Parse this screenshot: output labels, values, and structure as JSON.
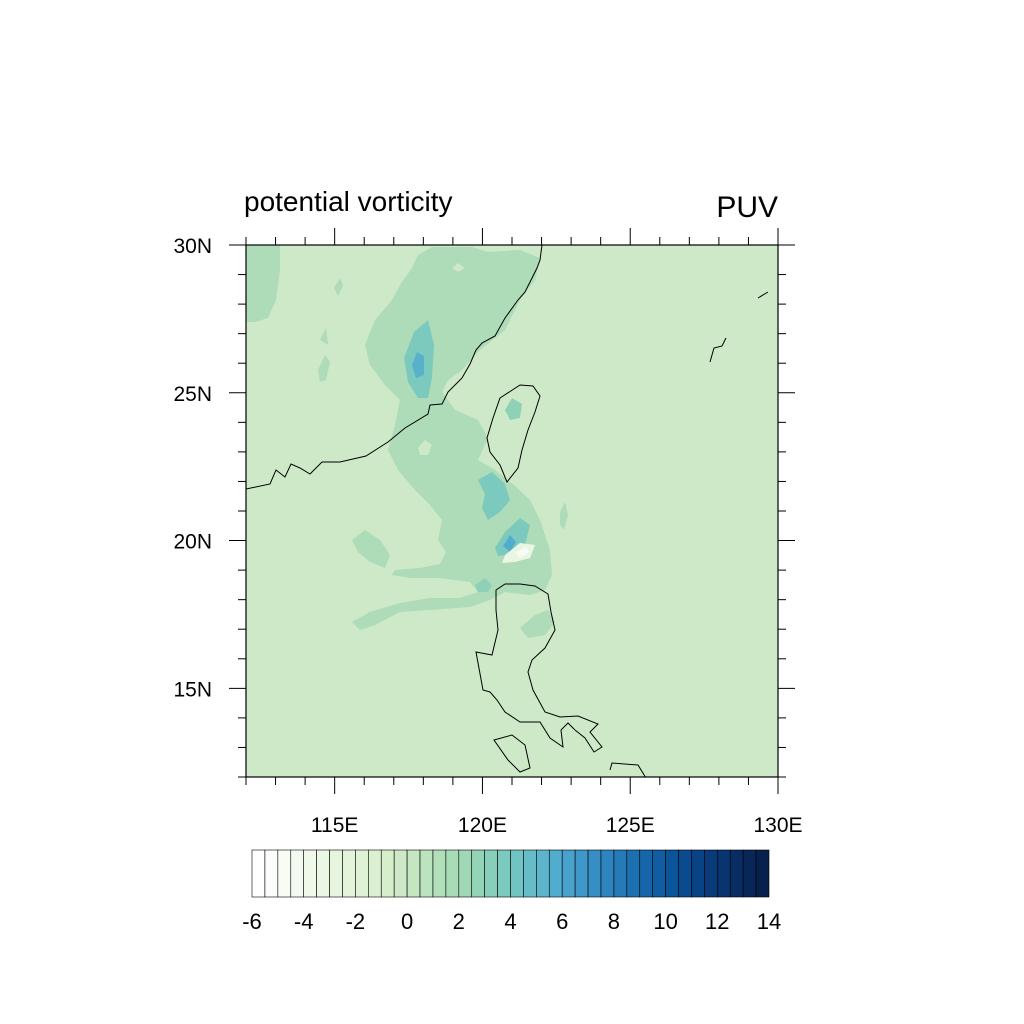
{
  "figure": {
    "left_string": "potential vorticity",
    "right_string": "PUV"
  },
  "map": {
    "lon_range": [
      112,
      130
    ],
    "lat_range": [
      12,
      30
    ],
    "lon_ticks": [
      {
        "value": 115,
        "label": "115E"
      },
      {
        "value": 120,
        "label": "120E"
      },
      {
        "value": 125,
        "label": "125E"
      },
      {
        "value": 130,
        "label": "130E"
      }
    ],
    "lat_ticks": [
      {
        "value": 30,
        "label": "30N"
      },
      {
        "value": 25,
        "label": "25N"
      },
      {
        "value": 20,
        "label": "20N"
      },
      {
        "value": 15,
        "label": "15N"
      }
    ],
    "background_color": "#cde9c7"
  },
  "colorbar": {
    "min": -6,
    "max": 14,
    "step": 0.5,
    "labels": [
      "-6",
      "-4",
      "-2",
      "0",
      "2",
      "4",
      "6",
      "8",
      "10",
      "12",
      "14"
    ],
    "colors": [
      "#ffffff",
      "#fbfdfa",
      "#f7fcf5",
      "#f3faef",
      "#eff8ea",
      "#ebf7e5",
      "#e7f5df",
      "#e3f4da",
      "#dff2d5",
      "#dbf0d0",
      "#d6efca",
      "#cde9c7",
      "#c4e6c1",
      "#bbe3bd",
      "#b1dfb9",
      "#a8dcb6",
      "#9fd8b4",
      "#94d4b6",
      "#88cfb9",
      "#7ccabd",
      "#70c5c2",
      "#66bdc8",
      "#5cb5cb",
      "#52accd",
      "#49a2cc",
      "#4098c9",
      "#378ec4",
      "#2e84be",
      "#257ab7",
      "#1d70b0",
      "#1666a9",
      "#105da2",
      "#0c549a",
      "#0a4b90",
      "#094385",
      "#093b7a",
      "#08346f",
      "#082d63",
      "#082657",
      "#08204d"
    ]
  }
}
